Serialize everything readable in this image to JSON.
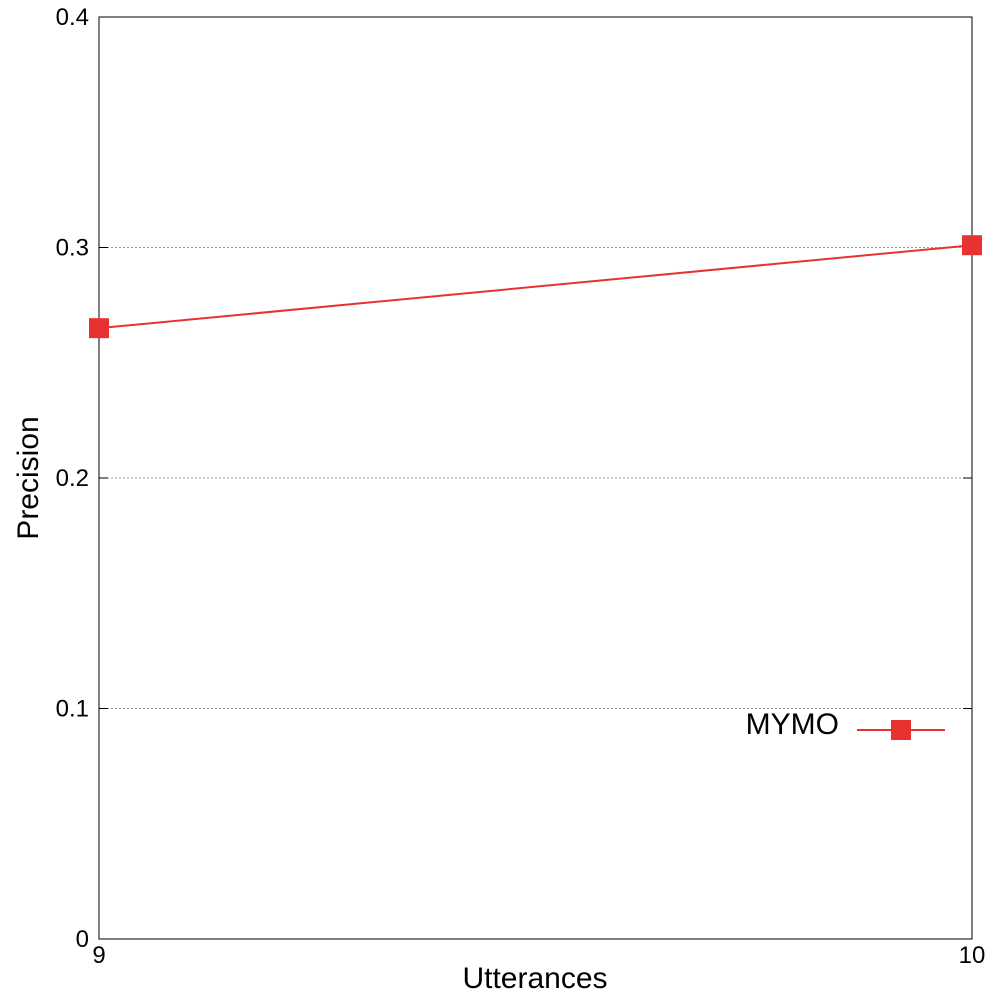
{
  "chart_data": {
    "type": "line",
    "title": "",
    "xlabel": "Utterances",
    "ylabel": "Precision",
    "xlim": [
      9,
      10
    ],
    "ylim": [
      0,
      0.4
    ],
    "x_ticks": [
      9,
      10
    ],
    "y_ticks": [
      0,
      0.1,
      0.2,
      0.3,
      0.4
    ],
    "x_tick_labels": [
      "9",
      "10"
    ],
    "y_tick_labels": [
      "0",
      "0.1",
      "0.2",
      "0.3",
      "0.4"
    ],
    "grid": "horizontal dotted",
    "legend_position": "bottom-right",
    "series": [
      {
        "name": "MYMO",
        "color": "#e83232",
        "marker": "square",
        "x": [
          9,
          10
        ],
        "values": [
          0.265,
          0.301
        ]
      }
    ]
  }
}
